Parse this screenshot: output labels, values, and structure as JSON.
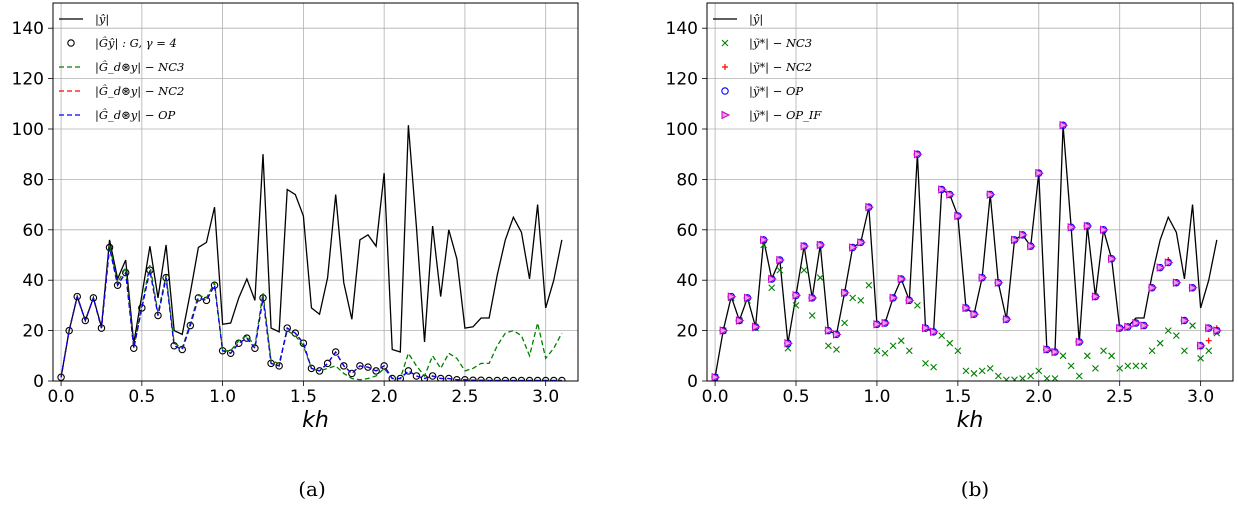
{
  "chart_data": [
    {
      "type": "line",
      "panel_label": "(a)",
      "xlabel": "kh",
      "ylabel": "",
      "xlim": [
        -0.05,
        3.2
      ],
      "ylim": [
        0,
        150
      ],
      "xticks": [
        "0.0",
        "0.5",
        "1.0",
        "1.5",
        "2.0",
        "2.5",
        "3.0"
      ],
      "yticks": [
        "0",
        "20",
        "40",
        "60",
        "80",
        "100",
        "120",
        "140"
      ],
      "grid": true,
      "legend_position": "top-left",
      "legend": [
        "|ŷ|",
        "|Ĝŷ| : G, γ = 4",
        "|Ĝ_d⊛y| − NC3",
        "|Ĝ_d⊛y| − NC2",
        "|Ĝ_d⊛y| − OP"
      ],
      "x": [
        0.0,
        0.05,
        0.1,
        0.15,
        0.2,
        0.25,
        0.3,
        0.35,
        0.4,
        0.45,
        0.5,
        0.55,
        0.6,
        0.65,
        0.7,
        0.75,
        0.8,
        0.85,
        0.9,
        0.95,
        1.0,
        1.05,
        1.1,
        1.15,
        1.2,
        1.25,
        1.3,
        1.35,
        1.4,
        1.45,
        1.5,
        1.55,
        1.6,
        1.65,
        1.7,
        1.75,
        1.8,
        1.85,
        1.9,
        1.95,
        2.0,
        2.05,
        2.1,
        2.15,
        2.2,
        2.25,
        2.3,
        2.35,
        2.4,
        2.45,
        2.5,
        2.55,
        2.6,
        2.65,
        2.7,
        2.75,
        2.8,
        2.85,
        2.9,
        2.95,
        3.0,
        3.05,
        3.1
      ],
      "series": [
        {
          "name": "|ŷ|",
          "style": "line",
          "color": "#000000",
          "values": [
            1.5,
            20,
            33.5,
            24,
            33,
            21.5,
            56,
            40.5,
            48,
            15,
            34,
            53.5,
            33,
            54,
            20,
            18.5,
            35,
            53,
            55,
            69,
            22.5,
            23,
            33,
            40.5,
            32,
            90,
            21,
            19.5,
            76,
            74,
            65.5,
            29,
            26.5,
            41,
            74,
            39,
            24.5,
            56,
            58,
            53.5,
            82.5,
            12.5,
            11.5,
            101.5,
            61,
            15.5,
            61.5,
            33.5,
            60,
            48.5,
            21,
            21.5,
            25,
            25,
            42,
            56,
            65,
            59,
            40.5,
            70,
            29,
            40,
            56
          ]
        },
        {
          "name": "|Ĝŷ| : G, γ = 4",
          "style": "circle-marker",
          "color": "#000000",
          "values": [
            1.5,
            20,
            33.5,
            24,
            33,
            21,
            53,
            38,
            43,
            13,
            29,
            44,
            26,
            41,
            14,
            12.5,
            22,
            33,
            32,
            38,
            12,
            11,
            15,
            17,
            13,
            33,
            7,
            6,
            21,
            19,
            15,
            5,
            4,
            7,
            11.5,
            6,
            3,
            6,
            5.5,
            4,
            6,
            1,
            1,
            4,
            2,
            1,
            2,
            1,
            1,
            0.5,
            0.5,
            0.3,
            0.3,
            0.2,
            0.2,
            0.2,
            0.2,
            0.2,
            0.2,
            0.2,
            0.2,
            0.2,
            0.2
          ]
        },
        {
          "name": "|Ĝ_d⊛y| − NC3",
          "style": "dashed",
          "color": "#008000",
          "values": [
            1.5,
            20,
            33.5,
            24,
            33,
            21,
            54,
            39,
            45,
            13,
            30,
            46,
            27,
            42,
            15,
            13,
            23,
            34,
            33,
            39,
            12,
            12,
            16,
            18,
            14,
            35,
            8,
            7,
            20,
            18,
            14,
            5,
            4,
            5,
            6,
            3,
            1,
            0.5,
            1,
            2,
            5,
            1,
            1,
            11,
            6,
            2,
            10,
            5,
            11,
            9,
            4,
            5,
            7,
            7,
            14,
            19,
            20,
            18,
            10,
            23,
            9,
            13,
            19
          ]
        },
        {
          "name": "|Ĝ_d⊛y| − NC2",
          "style": "dashed",
          "color": "#ff0000",
          "values": [
            1.5,
            20,
            33.5,
            24,
            33,
            21,
            53,
            38,
            43,
            13,
            29,
            44,
            26,
            41,
            14,
            12.5,
            22,
            33,
            32,
            38,
            12,
            11,
            15,
            17,
            13,
            33,
            7,
            6,
            21,
            19,
            15,
            5,
            4,
            7,
            11.5,
            6,
            3,
            6,
            5.5,
            4,
            6,
            1,
            1,
            4,
            2,
            1,
            2,
            1,
            1,
            0.5,
            0.5,
            0.3,
            0.3,
            0.2,
            0.2,
            0.2,
            0.2,
            0.2,
            0.2,
            0.2,
            0.2,
            0.2,
            0.2
          ]
        },
        {
          "name": "|Ĝ_d⊛y| − OP",
          "style": "dashed",
          "color": "#0000ff",
          "values": [
            1.5,
            20,
            33.5,
            24,
            33,
            21,
            53,
            38,
            43,
            13,
            29,
            44,
            26,
            41,
            14,
            12.5,
            22,
            33,
            32,
            38,
            12,
            11,
            15,
            17,
            13,
            33,
            7,
            6,
            21,
            19,
            15,
            5,
            4,
            7,
            11.5,
            6,
            3,
            6,
            5.5,
            4,
            6,
            1,
            1,
            4,
            2,
            1,
            2,
            1,
            1,
            0.5,
            0.5,
            0.3,
            0.3,
            0.2,
            0.2,
            0.2,
            0.2,
            0.2,
            0.2,
            0.2,
            0.2,
            0.2,
            0.2
          ]
        }
      ]
    },
    {
      "type": "line",
      "panel_label": "(b)",
      "xlabel": "kh",
      "ylabel": "",
      "xlim": [
        -0.05,
        3.2
      ],
      "ylim": [
        0,
        150
      ],
      "xticks": [
        "0.0",
        "0.5",
        "1.0",
        "1.5",
        "2.0",
        "2.5",
        "3.0"
      ],
      "yticks": [
        "0",
        "20",
        "40",
        "60",
        "80",
        "100",
        "120",
        "140"
      ],
      "grid": true,
      "legend_position": "top-left",
      "legend": [
        "|ŷ|",
        "|ỹ*| − NC3",
        "|ỹ*| − NC2",
        "|ỹ*| − OP",
        "|ỹ*| − OP_IF"
      ],
      "x": [
        0.0,
        0.05,
        0.1,
        0.15,
        0.2,
        0.25,
        0.3,
        0.35,
        0.4,
        0.45,
        0.5,
        0.55,
        0.6,
        0.65,
        0.7,
        0.75,
        0.8,
        0.85,
        0.9,
        0.95,
        1.0,
        1.05,
        1.1,
        1.15,
        1.2,
        1.25,
        1.3,
        1.35,
        1.4,
        1.45,
        1.5,
        1.55,
        1.6,
        1.65,
        1.7,
        1.75,
        1.8,
        1.85,
        1.9,
        1.95,
        2.0,
        2.05,
        2.1,
        2.15,
        2.2,
        2.25,
        2.3,
        2.35,
        2.4,
        2.45,
        2.5,
        2.55,
        2.6,
        2.65,
        2.7,
        2.75,
        2.8,
        2.85,
        2.9,
        2.95,
        3.0,
        3.05,
        3.1
      ],
      "series": [
        {
          "name": "|ŷ|",
          "style": "line",
          "color": "#000000",
          "values": [
            1.5,
            20,
            33.5,
            24,
            33,
            21.5,
            56,
            40.5,
            48,
            15,
            34,
            53.5,
            33,
            54,
            20,
            18.5,
            35,
            53,
            55,
            69,
            22.5,
            23,
            33,
            40.5,
            32,
            90,
            21,
            19.5,
            76,
            74,
            65.5,
            29,
            26.5,
            41,
            74,
            39,
            24.5,
            56,
            58,
            53.5,
            82.5,
            12.5,
            11.5,
            101.5,
            61,
            15.5,
            61.5,
            33.5,
            60,
            48.5,
            21,
            21.5,
            25,
            25,
            42,
            56,
            65,
            59,
            40.5,
            70,
            29,
            40,
            56
          ]
        },
        {
          "name": "|ỹ*| − NC3",
          "style": "x-marker",
          "color": "#008000",
          "values": [
            1.5,
            20,
            33,
            24,
            32,
            21,
            54,
            37,
            44,
            13,
            30,
            44,
            26,
            41,
            14,
            12.5,
            23,
            33,
            32,
            38,
            12,
            11,
            14,
            16,
            12,
            30,
            7,
            5.5,
            18,
            15,
            12,
            4,
            3,
            4,
            5,
            2,
            0.5,
            0.5,
            1,
            2,
            4,
            1,
            1,
            10,
            6,
            2,
            10,
            5,
            12,
            10,
            5,
            6,
            6,
            6,
            12,
            15,
            20,
            18,
            12,
            22,
            9,
            12,
            19
          ]
        },
        {
          "name": "|ỹ*| − NC2",
          "style": "plus-marker",
          "color": "#ff0000",
          "values": [
            1.5,
            20,
            33.5,
            24,
            33,
            21.5,
            56,
            40.5,
            48,
            15,
            34,
            53.5,
            33,
            54,
            20,
            18.5,
            35,
            53,
            55,
            69,
            22.5,
            23,
            33,
            40.5,
            32,
            90,
            21,
            19.5,
            76,
            74,
            65.5,
            29,
            26.5,
            41,
            74,
            39,
            24.5,
            56,
            58,
            53.5,
            82.5,
            12.5,
            11.5,
            101.5,
            61,
            15.5,
            61.5,
            33.5,
            60,
            48.5,
            21,
            21.5,
            23,
            22,
            37,
            45,
            48,
            39,
            24,
            37,
            14,
            16,
            21
          ]
        },
        {
          "name": "|ỹ*| − OP",
          "style": "circle-marker",
          "color": "#0000ff",
          "values": [
            1.5,
            20,
            33.5,
            24,
            33,
            21.5,
            56,
            40.5,
            48,
            15,
            34,
            53.5,
            33,
            54,
            20,
            18.5,
            35,
            53,
            55,
            69,
            22.5,
            23,
            33,
            40.5,
            32,
            90,
            21,
            19.5,
            76,
            74,
            65.5,
            29,
            26.5,
            41,
            74,
            39,
            24.5,
            56,
            58,
            53.5,
            82.5,
            12.5,
            11.5,
            101.5,
            61,
            15.5,
            61.5,
            33.5,
            60,
            48.5,
            21,
            21.5,
            23,
            22,
            37,
            45,
            47,
            39,
            24,
            37,
            14,
            21,
            20
          ]
        },
        {
          "name": "|ỹ*| − OP_IF",
          "style": "triangle-marker",
          "color": "#cc00cc",
          "values": [
            1.5,
            20,
            33.5,
            24,
            33,
            21.5,
            56,
            40.5,
            48,
            15,
            34,
            53.5,
            33,
            54,
            20,
            18.5,
            35,
            53,
            55,
            69,
            22.5,
            23,
            33,
            40.5,
            32,
            90,
            21,
            19.5,
            76,
            74,
            65.5,
            29,
            26.5,
            41,
            74,
            39,
            24.5,
            56,
            58,
            53.5,
            82.5,
            12.5,
            11.5,
            101.5,
            61,
            15.5,
            61.5,
            33.5,
            60,
            48.5,
            21,
            21.5,
            23,
            22,
            37,
            45,
            47,
            39,
            24,
            37,
            14,
            21,
            20
          ]
        }
      ]
    }
  ]
}
